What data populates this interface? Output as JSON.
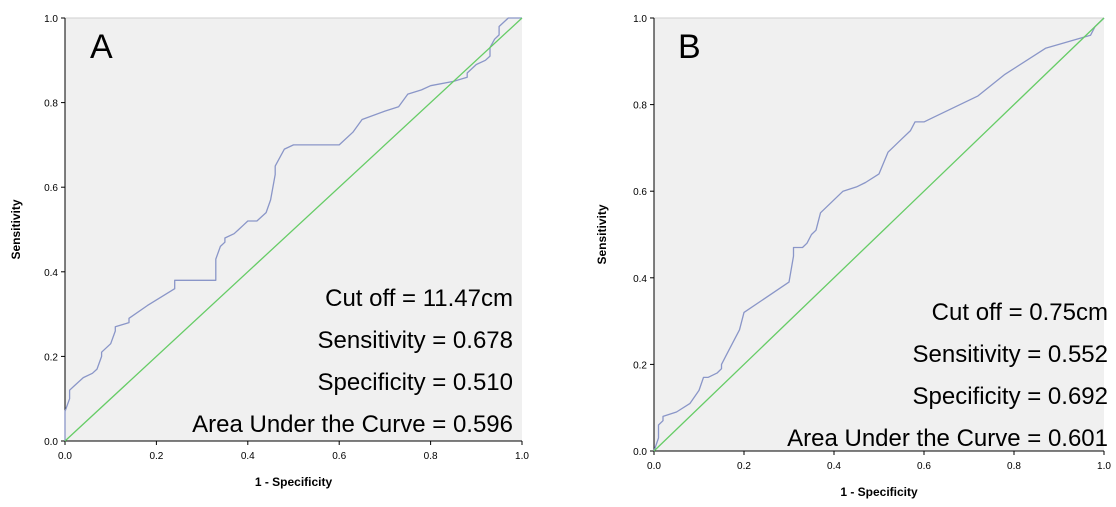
{
  "chart_data": [
    {
      "type": "line",
      "panel_label": "A",
      "xlabel": "1 - Specificity",
      "ylabel": "Sensitivity",
      "xlim": [
        0,
        1
      ],
      "ylim": [
        0,
        1
      ],
      "x_ticks": [
        "0.0",
        "0.2",
        "0.4",
        "0.6",
        "0.8",
        "1.0"
      ],
      "y_ticks": [
        "0.0",
        "0.2",
        "0.4",
        "0.6",
        "0.8",
        "1.0"
      ],
      "stats": [
        "Cut off = 11.47cm",
        "Sensitivity = 0.678",
        "Specificity = 0.510",
        "Area Under the Curve = 0.596"
      ],
      "colors": {
        "roc": "#8a96c8",
        "reference": "#66cc66",
        "background": "#f0f0f0"
      },
      "series": [
        {
          "role": "roc",
          "x": [
            0,
            0,
            0.01,
            0.01,
            0.02,
            0.04,
            0.06,
            0.07,
            0.08,
            0.08,
            0.1,
            0.11,
            0.11,
            0.14,
            0.14,
            0.18,
            0.24,
            0.24,
            0.33,
            0.33,
            0.34,
            0.35,
            0.35,
            0.37,
            0.38,
            0.39,
            0.4,
            0.42,
            0.44,
            0.45,
            0.46,
            0.46,
            0.47,
            0.48,
            0.5,
            0.52,
            0.6,
            0.63,
            0.65,
            0.7,
            0.73,
            0.75,
            0.78,
            0.8,
            0.85,
            0.88,
            0.88,
            0.9,
            0.92,
            0.93,
            0.93,
            0.94,
            0.95,
            0.95,
            0.97,
            1.0
          ],
          "y": [
            0,
            0.07,
            0.1,
            0.12,
            0.13,
            0.15,
            0.16,
            0.17,
            0.2,
            0.21,
            0.23,
            0.26,
            0.27,
            0.28,
            0.29,
            0.32,
            0.36,
            0.38,
            0.38,
            0.43,
            0.46,
            0.47,
            0.48,
            0.49,
            0.5,
            0.51,
            0.52,
            0.52,
            0.54,
            0.57,
            0.63,
            0.65,
            0.67,
            0.69,
            0.7,
            0.7,
            0.7,
            0.73,
            0.76,
            0.78,
            0.79,
            0.82,
            0.83,
            0.84,
            0.85,
            0.86,
            0.87,
            0.89,
            0.9,
            0.91,
            0.93,
            0.95,
            0.96,
            0.98,
            1.0,
            1.0
          ]
        },
        {
          "role": "reference",
          "x": [
            0,
            1
          ],
          "y": [
            0,
            1
          ]
        }
      ]
    },
    {
      "type": "line",
      "panel_label": "B",
      "xlabel": "1 - Specificity",
      "ylabel": "Sensitivity",
      "xlim": [
        0,
        1
      ],
      "ylim": [
        0,
        1
      ],
      "x_ticks": [
        "0.0",
        "0.2",
        "0.4",
        "0.6",
        "0.8",
        "1.0"
      ],
      "y_ticks": [
        "0.0",
        "0.2",
        "0.4",
        "0.6",
        "0.8",
        "1.0"
      ],
      "stats": [
        "Cut off = 0.75cm",
        "Sensitivity = 0.552",
        "Specificity = 0.692",
        "Area Under the Curve = 0.601"
      ],
      "colors": {
        "roc": "#8a96c8",
        "reference": "#66cc66",
        "background": "#f0f0f0"
      },
      "series": [
        {
          "role": "roc",
          "x": [
            0,
            0.01,
            0.01,
            0.02,
            0.02,
            0.05,
            0.08,
            0.1,
            0.11,
            0.12,
            0.14,
            0.15,
            0.15,
            0.16,
            0.17,
            0.18,
            0.19,
            0.2,
            0.3,
            0.31,
            0.31,
            0.33,
            0.34,
            0.35,
            0.36,
            0.37,
            0.42,
            0.45,
            0.47,
            0.5,
            0.52,
            0.55,
            0.57,
            0.58,
            0.6,
            0.62,
            0.72,
            0.78,
            0.87,
            0.97,
            0.98,
            1.0
          ],
          "y": [
            0,
            0.03,
            0.06,
            0.07,
            0.08,
            0.09,
            0.11,
            0.14,
            0.17,
            0.17,
            0.18,
            0.19,
            0.2,
            0.22,
            0.24,
            0.26,
            0.28,
            0.32,
            0.39,
            0.45,
            0.47,
            0.47,
            0.48,
            0.5,
            0.51,
            0.55,
            0.6,
            0.61,
            0.62,
            0.64,
            0.69,
            0.72,
            0.74,
            0.76,
            0.76,
            0.77,
            0.82,
            0.87,
            0.93,
            0.96,
            0.98,
            1.0
          ]
        },
        {
          "role": "reference",
          "x": [
            0,
            1
          ],
          "y": [
            0,
            1
          ]
        }
      ]
    }
  ]
}
